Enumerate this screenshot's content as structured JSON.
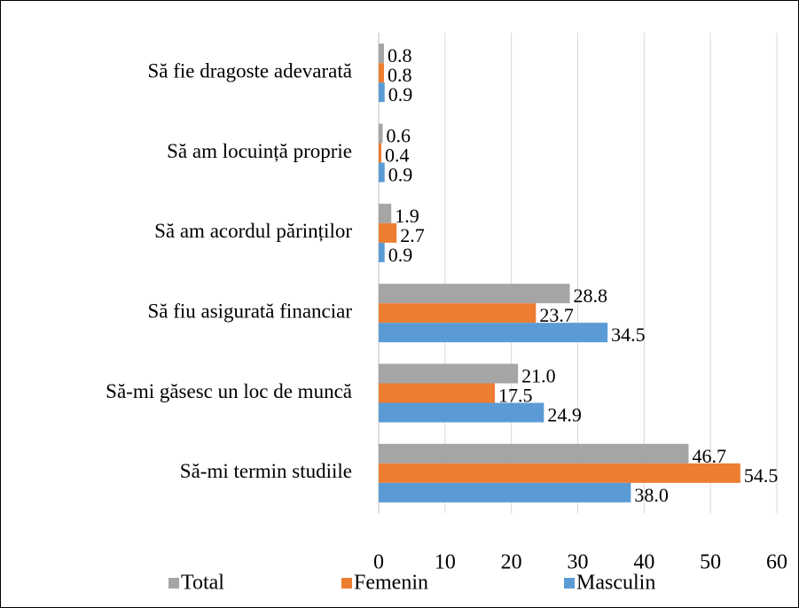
{
  "chart_data": {
    "type": "bar",
    "orientation": "horizontal",
    "categories": [
      "Să fie dragoste adevarată",
      "Să am locuință  proprie",
      "Să am acordul părinților",
      "Să fiu asigurată financiar",
      "Să-mi găsesc un loc de muncă",
      "Să-mi termin studiile"
    ],
    "series": [
      {
        "name": "Total",
        "color": "#a5a5a5",
        "values": [
          0.8,
          0.6,
          1.9,
          28.8,
          21.0,
          46.7
        ],
        "value_labels": [
          "0.8",
          "0.6",
          "1.9",
          "28.8",
          "21.0",
          "46.7"
        ]
      },
      {
        "name": "Femenin",
        "color": "#ed7d31",
        "values": [
          0.8,
          0.4,
          2.7,
          23.7,
          17.5,
          54.5
        ],
        "value_labels": [
          "0.8",
          "0.4",
          "2.7",
          "23.7",
          "17.5",
          "54.5"
        ]
      },
      {
        "name": "Masculin",
        "color": "#5b9bd5",
        "values": [
          0.9,
          0.9,
          0.9,
          34.5,
          24.9,
          38.0
        ],
        "value_labels": [
          "0.9",
          "0.9",
          "0.9",
          "34.5",
          "24.9",
          "38.0"
        ]
      }
    ],
    "xlim": [
      0,
      60
    ],
    "xticks": [
      0,
      10,
      20,
      30,
      40,
      50,
      60
    ],
    "grid": true,
    "legend": "bottom"
  }
}
